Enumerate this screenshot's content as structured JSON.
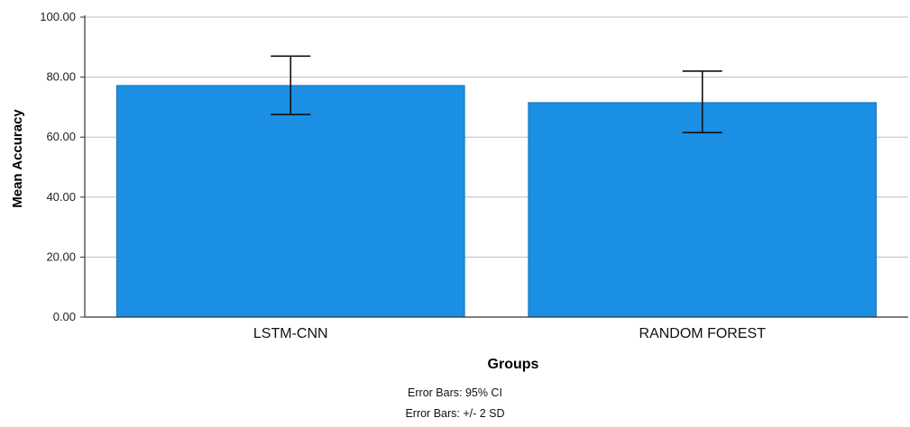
{
  "chart_data": {
    "type": "bar",
    "categories": [
      "LSTM-CNN",
      "RANDOM FOREST"
    ],
    "values": [
      77.2,
      71.5
    ],
    "error_low": [
      67.5,
      61.5
    ],
    "error_high": [
      87.0,
      82.0
    ],
    "xlabel": "Groups",
    "ylabel": "Mean Accuracy",
    "ylim": [
      0,
      100
    ],
    "yticks": [
      "0.00",
      "20.00",
      "40.00",
      "60.00",
      "80.00",
      "100.00"
    ],
    "ytick_values": [
      0,
      20,
      40,
      60,
      80,
      100
    ],
    "grid": true,
    "bar_color": "#1a8fe3",
    "footnotes": [
      "Error Bars: 95% CI",
      "Error Bars: +/- 2 SD"
    ]
  }
}
